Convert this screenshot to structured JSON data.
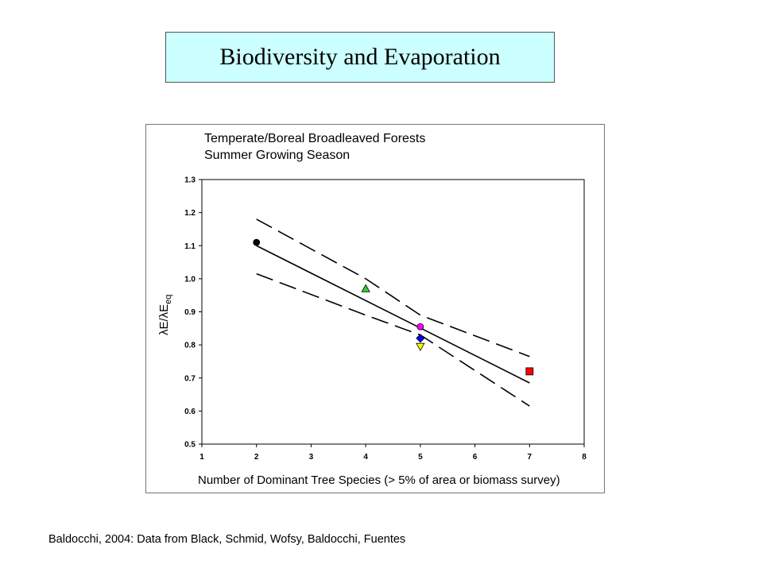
{
  "slide": {
    "title": "Biodiversity and Evaporation",
    "footer": "Baldocchi, 2004: Data from Black, Schmid, Wofsy, Baldocchi, Fuentes"
  },
  "chart_data": {
    "type": "scatter",
    "title_lines": [
      "Temperate/Boreal Broadleaved Forests",
      "Summer Growing Season"
    ],
    "xlabel": "Number of Dominant Tree Species (> 5% of area or biomass survey)",
    "ylabel": "λE/λE",
    "ylabel_subscript": "eq",
    "xlim": [
      1,
      8
    ],
    "ylim": [
      0.5,
      1.3
    ],
    "x_ticks": [
      "1",
      "2",
      "3",
      "4",
      "5",
      "6",
      "7",
      "8"
    ],
    "y_ticks": [
      "0.5",
      "0.6",
      "0.7",
      "0.8",
      "0.9",
      "1.0",
      "1.1",
      "1.2",
      "1.3"
    ],
    "grid": false,
    "points": [
      {
        "x": 2,
        "y": 1.11,
        "marker": "circle",
        "color": "#000000"
      },
      {
        "x": 4,
        "y": 0.97,
        "marker": "triangle-up",
        "color": "#33cc33"
      },
      {
        "x": 5,
        "y": 0.855,
        "marker": "circle",
        "color": "#ff00ff"
      },
      {
        "x": 5,
        "y": 0.82,
        "marker": "diamond",
        "color": "#0000ff"
      },
      {
        "x": 5,
        "y": 0.795,
        "marker": "triangle-down",
        "color": "#ffff00"
      },
      {
        "x": 7,
        "y": 0.72,
        "marker": "square",
        "color": "#ff0000"
      }
    ],
    "lines": [
      {
        "style": "solid",
        "x": [
          2,
          7
        ],
        "y": [
          1.1,
          0.685
        ]
      },
      {
        "style": "dashed",
        "x": [
          2,
          4,
          5,
          7
        ],
        "y": [
          1.18,
          1.0,
          0.89,
          0.765
        ]
      },
      {
        "style": "dashed",
        "x": [
          2,
          4,
          5,
          7
        ],
        "y": [
          1.015,
          0.89,
          0.83,
          0.615
        ]
      }
    ]
  }
}
